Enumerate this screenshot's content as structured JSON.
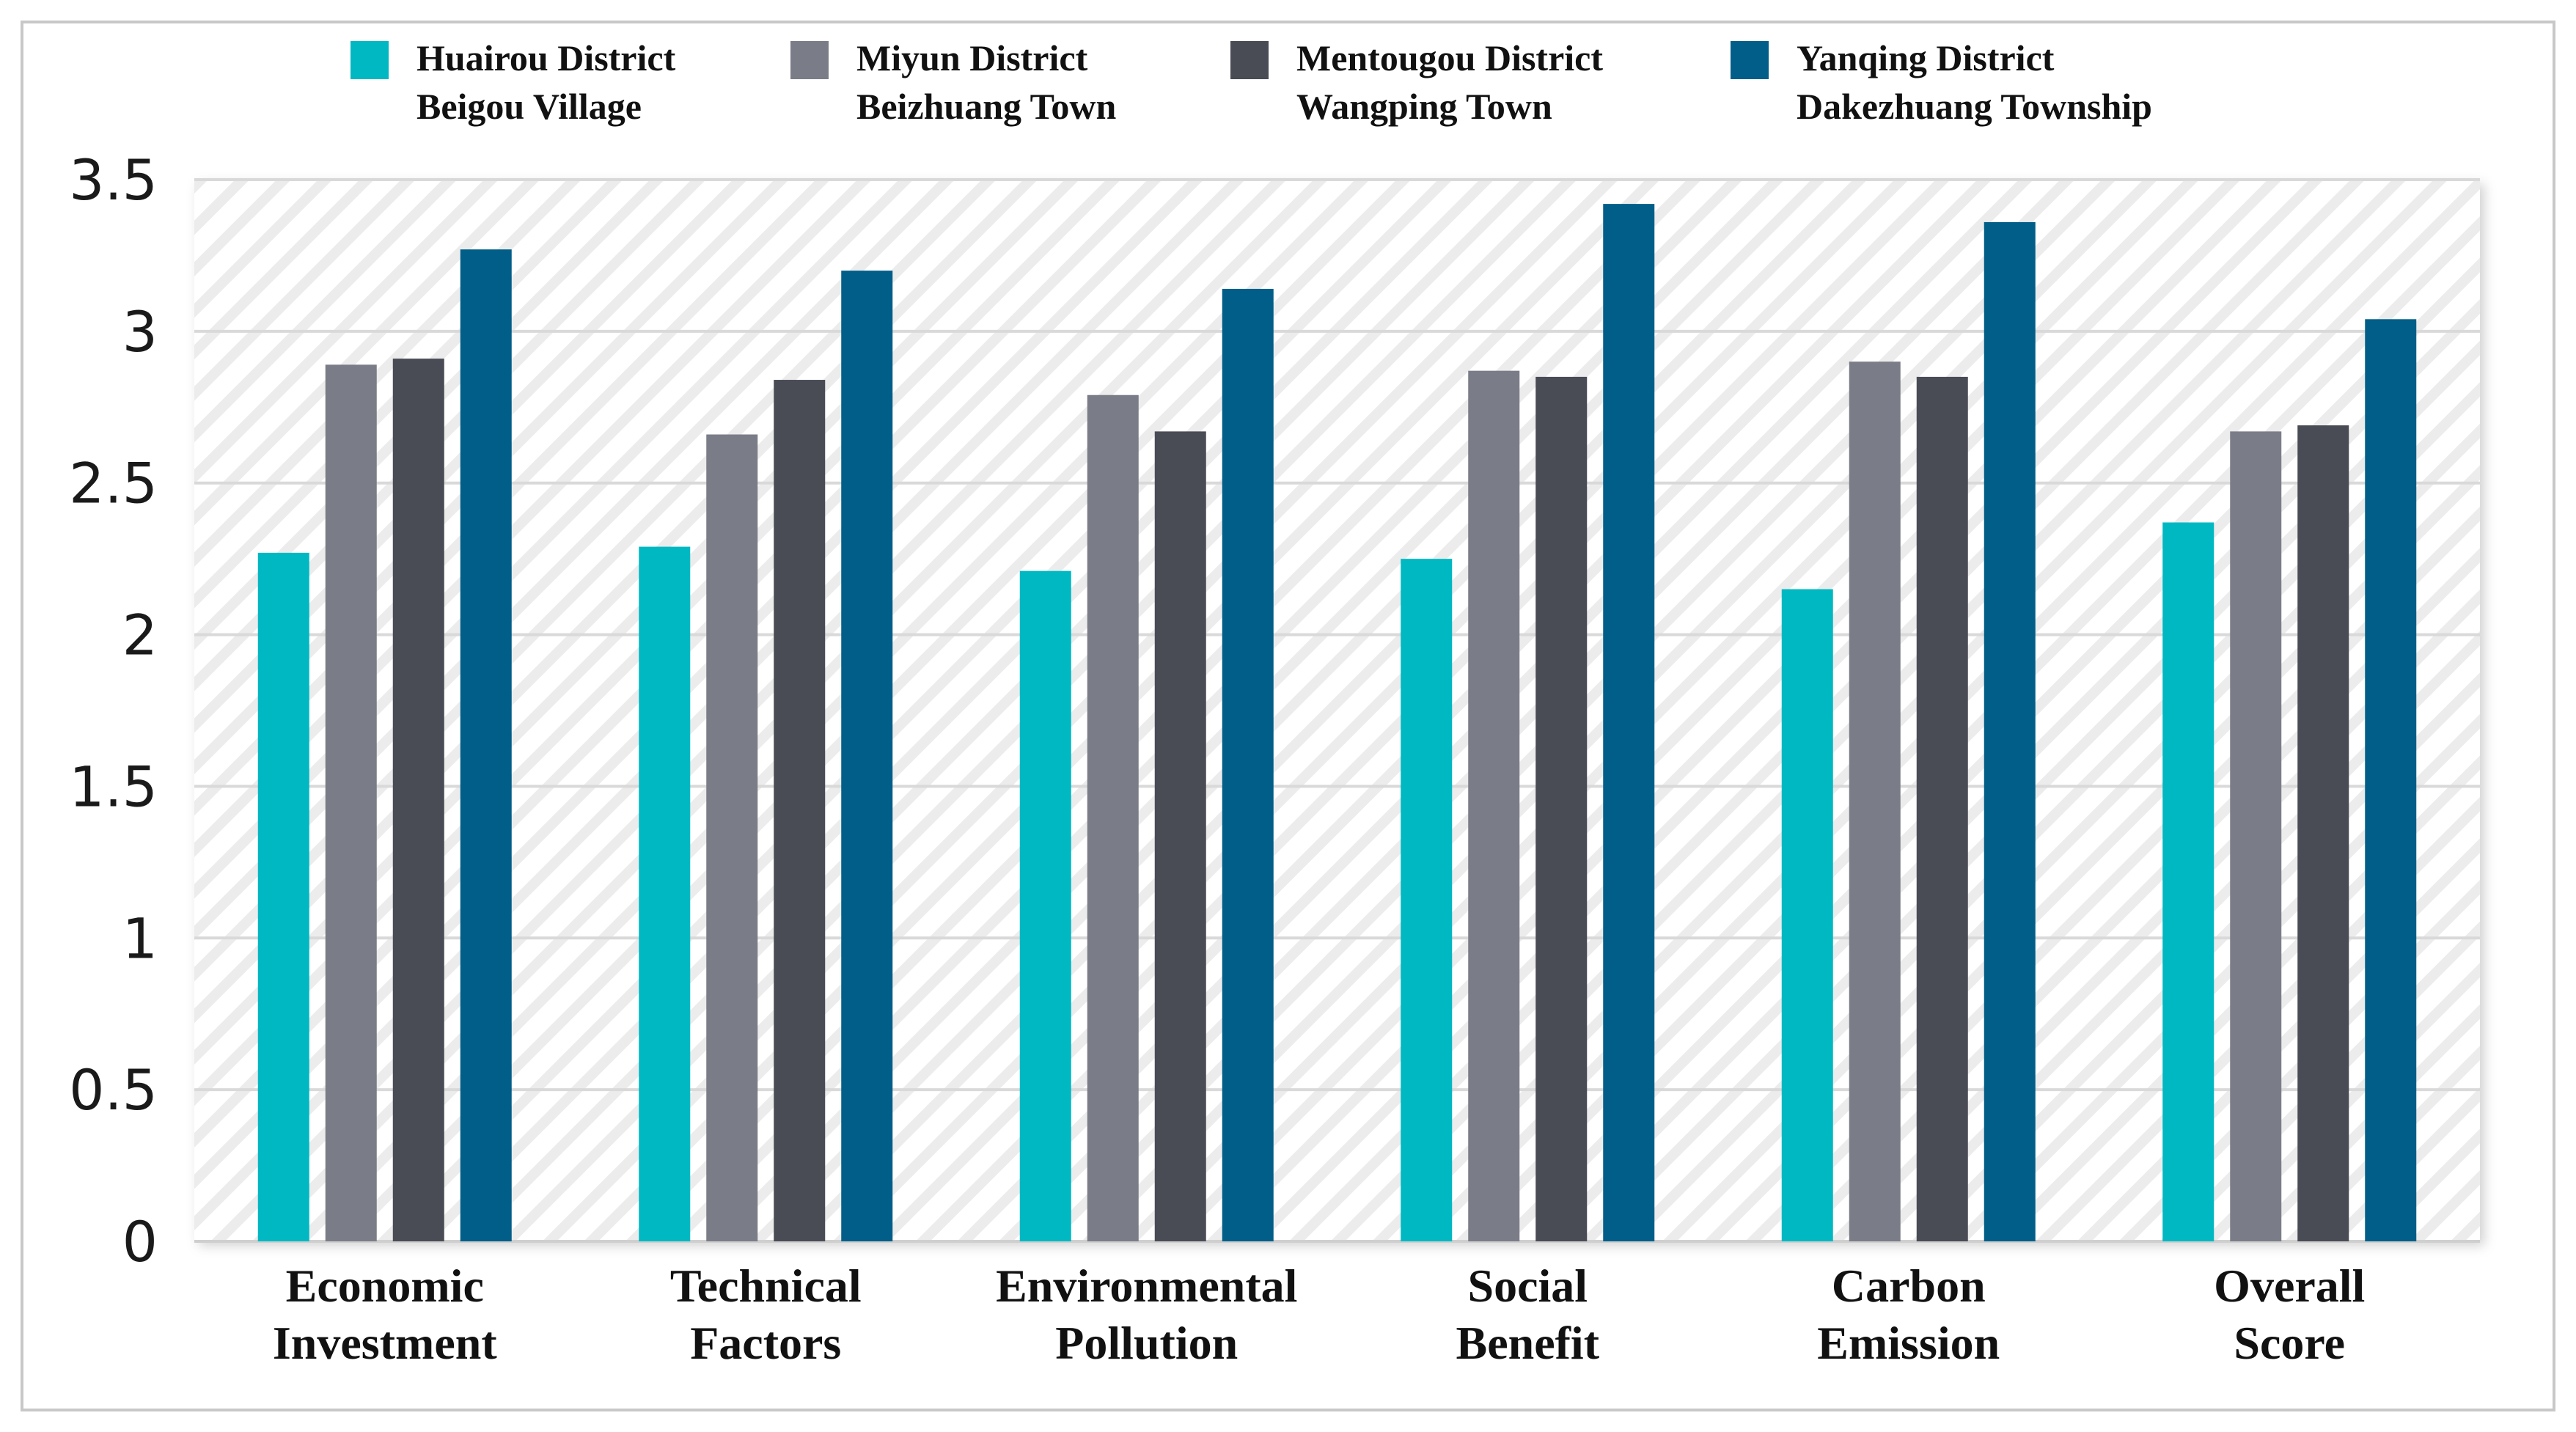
{
  "chart_data": {
    "type": "bar",
    "title": "",
    "xlabel": "",
    "ylabel": "",
    "ylim": [
      0,
      3.5
    ],
    "yticks": [
      "0",
      "0.5",
      "1",
      "1.5",
      "2",
      "2.5",
      "3",
      "3.5"
    ],
    "ytick_values": [
      0,
      0.5,
      1,
      1.5,
      2,
      2.5,
      3,
      3.5
    ],
    "categories": [
      [
        "Economic",
        "Investment"
      ],
      [
        "Technical",
        "Factors"
      ],
      [
        "Environmental",
        "Pollution"
      ],
      [
        "Social",
        "Benefit"
      ],
      [
        "Carbon",
        "Emission"
      ],
      [
        "Overall",
        "Score"
      ]
    ],
    "series": [
      {
        "name": [
          "Huairou District",
          "Beigou Village"
        ],
        "color": "#00b8c2",
        "values": [
          2.27,
          2.29,
          2.21,
          2.25,
          2.15,
          2.37
        ]
      },
      {
        "name": [
          "Miyun District",
          "Beizhuang Town"
        ],
        "color": "#7a7d87",
        "values": [
          2.89,
          2.66,
          2.79,
          2.87,
          2.9,
          2.67
        ]
      },
      {
        "name": [
          "Mentougou District",
          "Wangping Town"
        ],
        "color": "#494b55",
        "values": [
          2.91,
          2.84,
          2.67,
          2.85,
          2.85,
          2.69
        ]
      },
      {
        "name": [
          "Yanqing District",
          "Dakezhuang Township"
        ],
        "color": "#005e88",
        "values": [
          3.27,
          3.2,
          3.14,
          3.42,
          3.36,
          3.04
        ]
      }
    ],
    "grid": true,
    "legend_position": "top"
  }
}
